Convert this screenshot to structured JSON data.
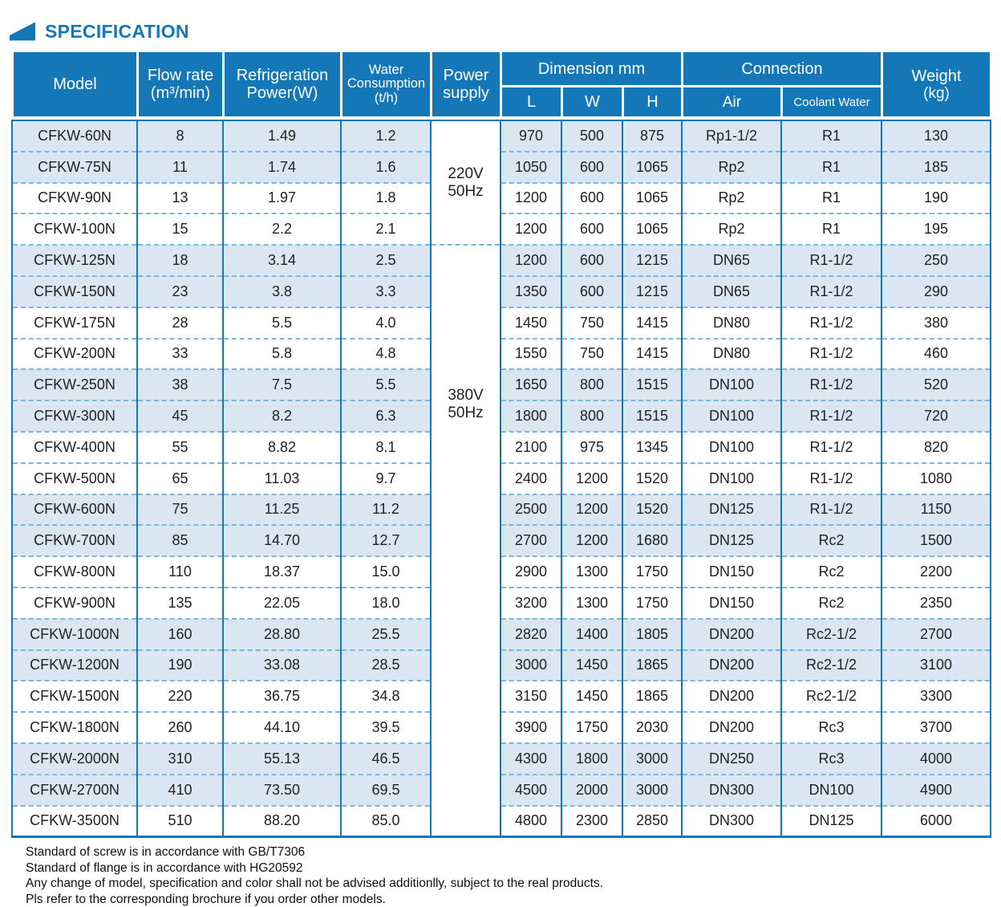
{
  "title": {
    "text": "SPECIFICATION"
  },
  "colors": {
    "header_blue": "#1478b8",
    "row_shade": "#dbe6f3",
    "dashed_separator": "#7cb6dc",
    "title_blue": "#1478b8"
  },
  "table": {
    "header": {
      "model": "Model",
      "flow_line1": "Flow rate",
      "flow_line2": "(m³/min)",
      "refrigeration_line1": "Refrigeration",
      "refrigeration_line2": "Power(W)",
      "water_line1": "Water",
      "water_line2": "Consumption",
      "water_line3": "(t/h)",
      "power_line1": "Power",
      "power_line2": "supply",
      "dimension": "Dimension mm",
      "dim_l": "L",
      "dim_w": "W",
      "dim_h": "H",
      "connection": "Connection",
      "conn_air": "Air",
      "conn_coolant": "Coolant Water",
      "weight_line1": "Weight",
      "weight_line2": "(kg)"
    },
    "power_groups": [
      {
        "label_line1": "220V",
        "label_line2": "50Hz",
        "row_span": 4
      },
      {
        "label_line1": "380V",
        "label_line2": "50Hz",
        "row_span": 19
      }
    ],
    "rows": [
      {
        "model": "CFKW-60N",
        "flow": "8",
        "power": "1.49",
        "water": "1.2",
        "l": "970",
        "w": "500",
        "h": "875",
        "air": "Rp1-1/2",
        "coolant": "R1",
        "weight": "130"
      },
      {
        "model": "CFKW-75N",
        "flow": "11",
        "power": "1.74",
        "water": "1.6",
        "l": "1050",
        "w": "600",
        "h": "1065",
        "air": "Rp2",
        "coolant": "R1",
        "weight": "185"
      },
      {
        "model": "CFKW-90N",
        "flow": "13",
        "power": "1.97",
        "water": "1.8",
        "l": "1200",
        "w": "600",
        "h": "1065",
        "air": "Rp2",
        "coolant": "R1",
        "weight": "190"
      },
      {
        "model": "CFKW-100N",
        "flow": "15",
        "power": "2.2",
        "water": "2.1",
        "l": "1200",
        "w": "600",
        "h": "1065",
        "air": "Rp2",
        "coolant": "R1",
        "weight": "195"
      },
      {
        "model": "CFKW-125N",
        "flow": "18",
        "power": "3.14",
        "water": "2.5",
        "l": "1200",
        "w": "600",
        "h": "1215",
        "air": "DN65",
        "coolant": "R1-1/2",
        "weight": "250"
      },
      {
        "model": "CFKW-150N",
        "flow": "23",
        "power": "3.8",
        "water": "3.3",
        "l": "1350",
        "w": "600",
        "h": "1215",
        "air": "DN65",
        "coolant": "R1-1/2",
        "weight": "290"
      },
      {
        "model": "CFKW-175N",
        "flow": "28",
        "power": "5.5",
        "water": "4.0",
        "l": "1450",
        "w": "750",
        "h": "1415",
        "air": "DN80",
        "coolant": "R1-1/2",
        "weight": "380"
      },
      {
        "model": "CFKW-200N",
        "flow": "33",
        "power": "5.8",
        "water": "4.8",
        "l": "1550",
        "w": "750",
        "h": "1415",
        "air": "DN80",
        "coolant": "R1-1/2",
        "weight": "460"
      },
      {
        "model": "CFKW-250N",
        "flow": "38",
        "power": "7.5",
        "water": "5.5",
        "l": "1650",
        "w": "800",
        "h": "1515",
        "air": "DN100",
        "coolant": "R1-1/2",
        "weight": "520"
      },
      {
        "model": "CFKW-300N",
        "flow": "45",
        "power": "8.2",
        "water": "6.3",
        "l": "1800",
        "w": "800",
        "h": "1515",
        "air": "DN100",
        "coolant": "R1-1/2",
        "weight": "720"
      },
      {
        "model": "CFKW-400N",
        "flow": "55",
        "power": "8.82",
        "water": "8.1",
        "l": "2100",
        "w": "975",
        "h": "1345",
        "air": "DN100",
        "coolant": "R1-1/2",
        "weight": "820"
      },
      {
        "model": "CFKW-500N",
        "flow": "65",
        "power": "11.03",
        "water": "9.7",
        "l": "2400",
        "w": "1200",
        "h": "1520",
        "air": "DN100",
        "coolant": "R1-1/2",
        "weight": "1080"
      },
      {
        "model": "CFKW-600N",
        "flow": "75",
        "power": "11.25",
        "water": "11.2",
        "l": "2500",
        "w": "1200",
        "h": "1520",
        "air": "DN125",
        "coolant": "R1-1/2",
        "weight": "1150"
      },
      {
        "model": "CFKW-700N",
        "flow": "85",
        "power": "14.70",
        "water": "12.7",
        "l": "2700",
        "w": "1200",
        "h": "1680",
        "air": "DN125",
        "coolant": "Rc2",
        "weight": "1500"
      },
      {
        "model": "CFKW-800N",
        "flow": "110",
        "power": "18.37",
        "water": "15.0",
        "l": "2900",
        "w": "1300",
        "h": "1750",
        "air": "DN150",
        "coolant": "Rc2",
        "weight": "2200"
      },
      {
        "model": "CFKW-900N",
        "flow": "135",
        "power": "22.05",
        "water": "18.0",
        "l": "3200",
        "w": "1300",
        "h": "1750",
        "air": "DN150",
        "coolant": "Rc2",
        "weight": "2350"
      },
      {
        "model": "CFKW-1000N",
        "flow": "160",
        "power": "28.80",
        "water": "25.5",
        "l": "2820",
        "w": "1400",
        "h": "1805",
        "air": "DN200",
        "coolant": "Rc2-1/2",
        "weight": "2700"
      },
      {
        "model": "CFKW-1200N",
        "flow": "190",
        "power": "33.08",
        "water": "28.5",
        "l": "3000",
        "w": "1450",
        "h": "1865",
        "air": "DN200",
        "coolant": "Rc2-1/2",
        "weight": "3100"
      },
      {
        "model": "CFKW-1500N",
        "flow": "220",
        "power": "36.75",
        "water": "34.8",
        "l": "3150",
        "w": "1450",
        "h": "1865",
        "air": "DN200",
        "coolant": "Rc2-1/2",
        "weight": "3300"
      },
      {
        "model": "CFKW-1800N",
        "flow": "260",
        "power": "44.10",
        "water": "39.5",
        "l": "3900",
        "w": "1750",
        "h": "2030",
        "air": "DN200",
        "coolant": "Rc3",
        "weight": "3700"
      },
      {
        "model": "CFKW-2000N",
        "flow": "310",
        "power": "55.13",
        "water": "46.5",
        "l": "4300",
        "w": "1800",
        "h": "3000",
        "air": "DN250",
        "coolant": "Rc3",
        "weight": "4000"
      },
      {
        "model": "CFKW-2700N",
        "flow": "410",
        "power": "73.50",
        "water": "69.5",
        "l": "4500",
        "w": "2000",
        "h": "3000",
        "air": "DN300",
        "coolant": "DN100",
        "weight": "4900"
      },
      {
        "model": "CFKW-3500N",
        "flow": "510",
        "power": "88.20",
        "water": "85.0",
        "l": "4800",
        "w": "2300",
        "h": "2850",
        "air": "DN300",
        "coolant": "DN125",
        "weight": "6000"
      }
    ]
  },
  "notes": [
    "Standard of screw is in accordance with GB/T7306",
    "Standard of flange is in accordance with HG20592",
    "Any change of model, specification and color shall not be advised additionlly, subject to the real products.",
    "Pls refer to the corresponding brochure if you order other models."
  ]
}
